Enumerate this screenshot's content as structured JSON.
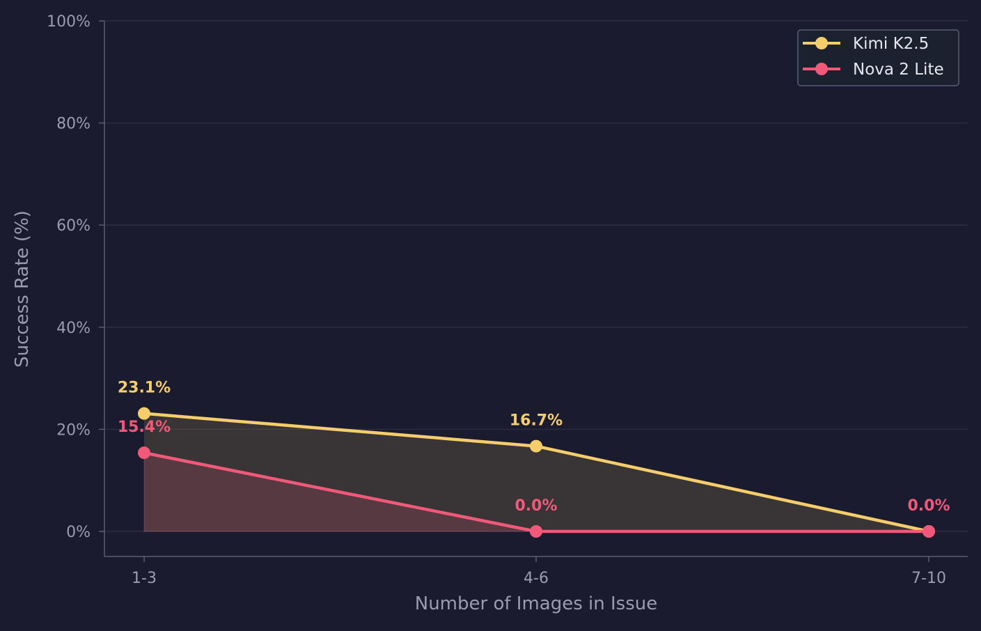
{
  "chart_data": {
    "type": "line",
    "xlabel": "Number of Images in Issue",
    "ylabel": "Success Rate (%)",
    "categories": [
      "1-3",
      "4-6",
      "7-10"
    ],
    "ylim": [
      0,
      100
    ],
    "yticks": [
      0,
      20,
      40,
      60,
      80,
      100
    ],
    "ytick_labels": [
      "0%",
      "20%",
      "40%",
      "60%",
      "80%",
      "100%"
    ],
    "grid": "horizontal",
    "legend_position": "top-right",
    "series": [
      {
        "name": "Kimi K2.5",
        "color": "#f6cd6b",
        "values": [
          23.1,
          16.7,
          0.0
        ],
        "labels": [
          "23.1%",
          "16.7%",
          ""
        ]
      },
      {
        "name": "Nova 2 Lite",
        "color": "#f0597a",
        "values": [
          15.4,
          0.0,
          0.0
        ],
        "labels": [
          "15.4%",
          "0.0%",
          "0.0%"
        ]
      }
    ]
  }
}
